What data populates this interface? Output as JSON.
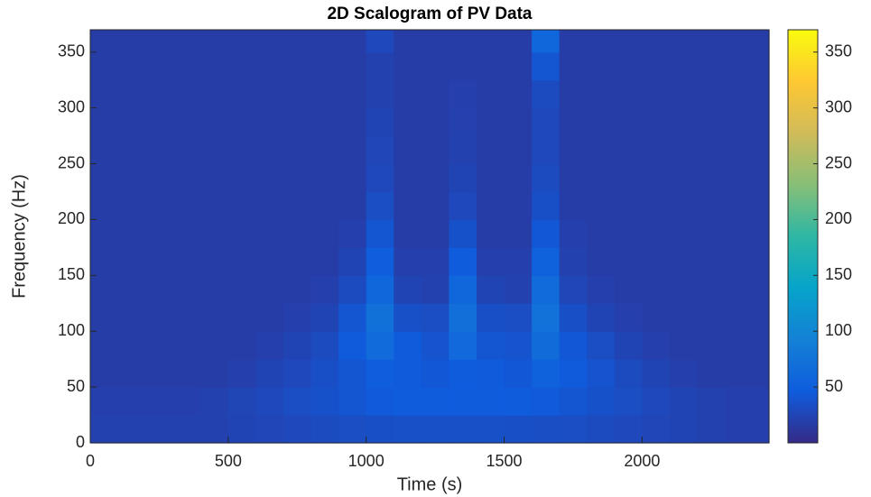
{
  "chart_data": {
    "type": "heatmap",
    "title": "2D Scalogram of PV Data",
    "x_label": "Time (s)",
    "y_label": "Frequency (Hz)",
    "xlim": [
      0,
      2460
    ],
    "ylim": [
      0,
      370
    ],
    "xticks": [
      0,
      500,
      1000,
      1500,
      2000
    ],
    "yticks": [
      0,
      50,
      100,
      150,
      200,
      250,
      300,
      350
    ],
    "xbins": [
      0,
      100,
      200,
      300,
      400,
      500,
      600,
      700,
      800,
      900,
      1000,
      1100,
      1200,
      1300,
      1400,
      1500,
      1600,
      1700,
      1800,
      1900,
      2000,
      2100,
      2200,
      2300,
      2460
    ],
    "ybins": [
      0,
      25,
      50,
      75,
      100,
      125,
      150,
      175,
      200,
      225,
      250,
      275,
      300,
      325,
      350,
      370
    ],
    "values": [
      [
        22,
        22,
        22,
        22,
        22,
        24,
        26,
        28,
        30,
        32,
        34,
        35,
        35,
        35,
        35,
        34,
        33,
        32,
        30,
        28,
        26,
        24,
        22,
        20
      ],
      [
        20,
        20,
        20,
        20,
        22,
        25,
        28,
        32,
        36,
        40,
        44,
        46,
        46,
        46,
        46,
        46,
        44,
        40,
        36,
        32,
        28,
        24,
        22,
        20
      ],
      [
        18,
        18,
        18,
        18,
        18,
        20,
        24,
        28,
        34,
        40,
        50,
        45,
        42,
        48,
        45,
        42,
        52,
        45,
        38,
        30,
        24,
        20,
        18,
        18
      ],
      [
        18,
        18,
        18,
        18,
        18,
        18,
        20,
        24,
        30,
        45,
        65,
        45,
        38,
        62,
        40,
        38,
        66,
        42,
        32,
        24,
        20,
        18,
        18,
        18
      ],
      [
        18,
        18,
        18,
        18,
        18,
        18,
        18,
        20,
        24,
        40,
        72,
        35,
        32,
        70,
        34,
        32,
        74,
        34,
        24,
        20,
        18,
        18,
        18,
        18
      ],
      [
        18,
        18,
        18,
        18,
        18,
        18,
        18,
        18,
        20,
        30,
        60,
        24,
        22,
        60,
        24,
        22,
        65,
        26,
        20,
        18,
        18,
        18,
        18,
        18
      ],
      [
        18,
        18,
        18,
        18,
        18,
        18,
        18,
        18,
        18,
        24,
        50,
        20,
        20,
        48,
        20,
        20,
        52,
        22,
        18,
        18,
        18,
        18,
        18,
        18
      ],
      [
        18,
        18,
        18,
        18,
        18,
        18,
        18,
        18,
        18,
        20,
        40,
        18,
        18,
        36,
        18,
        18,
        42,
        20,
        18,
        18,
        18,
        18,
        18,
        18
      ],
      [
        18,
        18,
        18,
        18,
        18,
        18,
        18,
        18,
        18,
        18,
        32,
        18,
        18,
        28,
        18,
        18,
        34,
        18,
        18,
        18,
        18,
        18,
        18,
        18
      ],
      [
        18,
        18,
        18,
        18,
        18,
        18,
        18,
        18,
        18,
        18,
        28,
        18,
        18,
        24,
        18,
        18,
        30,
        18,
        18,
        18,
        18,
        18,
        18,
        18
      ],
      [
        18,
        18,
        18,
        18,
        18,
        18,
        18,
        18,
        18,
        18,
        26,
        18,
        18,
        22,
        18,
        18,
        28,
        18,
        18,
        18,
        18,
        18,
        18,
        18
      ],
      [
        18,
        18,
        18,
        18,
        18,
        18,
        18,
        18,
        18,
        18,
        24,
        18,
        18,
        21,
        18,
        18,
        28,
        18,
        18,
        18,
        18,
        18,
        18,
        18
      ],
      [
        18,
        18,
        18,
        18,
        18,
        18,
        18,
        18,
        18,
        18,
        22,
        18,
        18,
        20,
        18,
        18,
        30,
        18,
        18,
        18,
        18,
        18,
        18,
        18
      ],
      [
        18,
        18,
        18,
        18,
        18,
        18,
        18,
        18,
        18,
        18,
        22,
        18,
        18,
        18,
        18,
        18,
        40,
        18,
        18,
        18,
        18,
        18,
        18,
        18
      ],
      [
        18,
        18,
        18,
        18,
        18,
        18,
        18,
        18,
        18,
        18,
        28,
        18,
        18,
        18,
        18,
        18,
        60,
        18,
        18,
        18,
        18,
        18,
        18,
        18
      ]
    ],
    "clim": [
      0,
      370
    ],
    "cticks": [
      50,
      100,
      150,
      200,
      250,
      300,
      350
    ],
    "colormap": [
      "#352a87",
      "#0f5cdd",
      "#1481d6",
      "#06a4ca",
      "#2eb7a4",
      "#87bf77",
      "#d1bb59",
      "#fec832",
      "#f9fb0e"
    ]
  }
}
